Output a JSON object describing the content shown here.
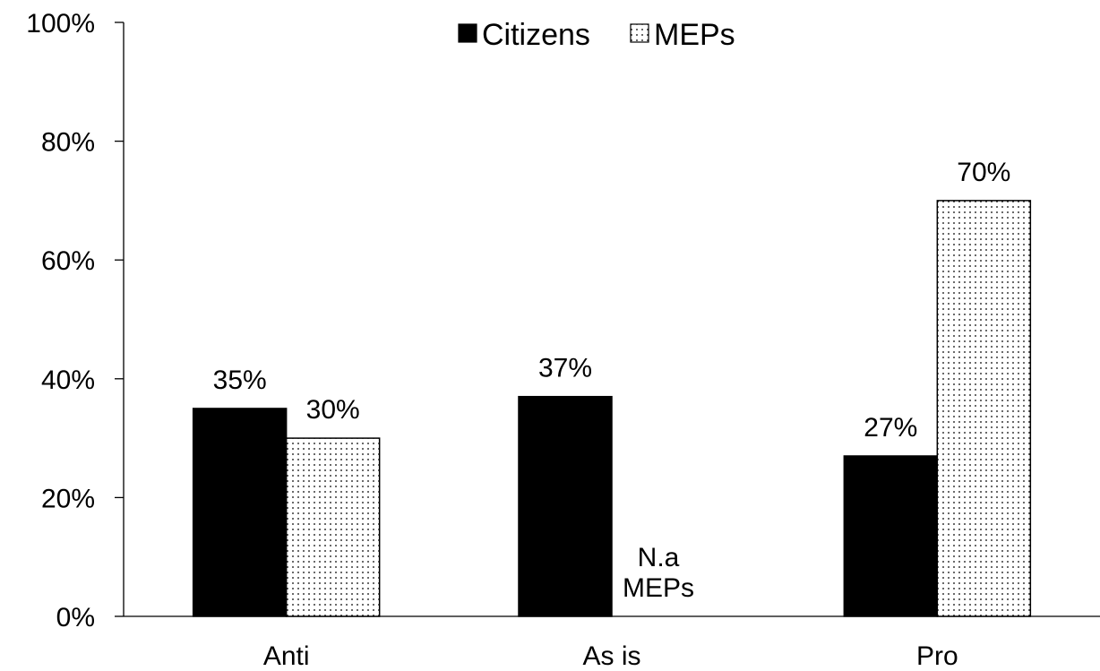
{
  "chart_data": {
    "type": "bar",
    "categories": [
      "Anti",
      "As is",
      "Pro"
    ],
    "series": [
      {
        "name": "Citizens",
        "values": [
          35,
          37,
          27
        ],
        "labels": [
          "35%",
          "37%",
          "27%"
        ],
        "fill": "solid",
        "color": "#000000"
      },
      {
        "name": "MEPs",
        "values": [
          30,
          null,
          70
        ],
        "labels": [
          "30%",
          null,
          "70%"
        ],
        "fill": "dotted",
        "color": "#ffffff"
      }
    ],
    "y_ticks": [
      "0%",
      "20%",
      "40%",
      "60%",
      "80%",
      "100%"
    ],
    "ylim": [
      0,
      100
    ],
    "grid": false,
    "legend_position": "top-center",
    "annotations": [
      {
        "category": "As is",
        "series": "MEPs",
        "lines": [
          "N.a",
          "MEPs"
        ]
      }
    ]
  }
}
